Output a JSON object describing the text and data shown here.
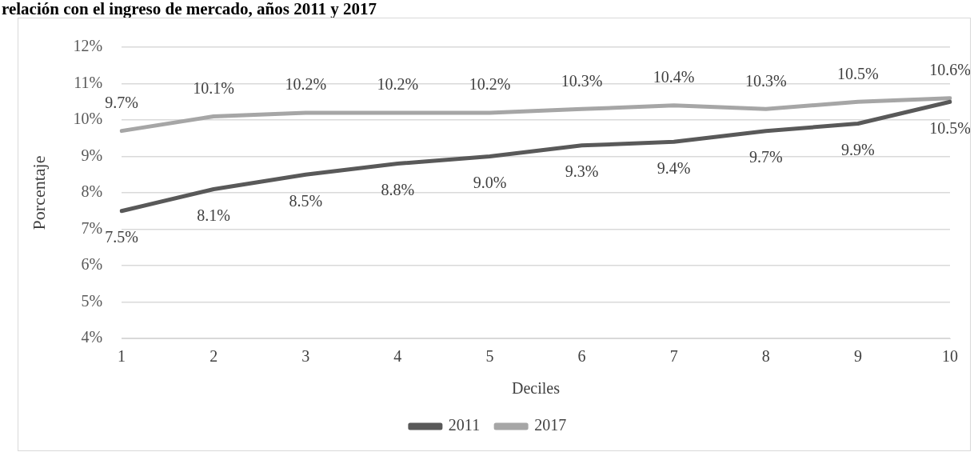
{
  "chart_data": {
    "type": "line",
    "title": "relación con el ingreso de mercado, años 2011 y 2017",
    "xlabel": "Deciles",
    "ylabel": "Porcentaje",
    "categories": [
      "1",
      "2",
      "3",
      "4",
      "5",
      "6",
      "7",
      "8",
      "9",
      "10"
    ],
    "series": [
      {
        "name": "2011",
        "color": "#595959",
        "values": [
          7.5,
          8.1,
          8.5,
          8.8,
          9.0,
          9.3,
          9.4,
          9.7,
          9.9,
          10.5
        ],
        "value_labels": [
          "7.5%",
          "8.1%",
          "8.5%",
          "8.8%",
          "9.0%",
          "9.3%",
          "9.4%",
          "9.7%",
          "9.9%",
          "10.5%"
        ]
      },
      {
        "name": "2017",
        "color": "#a6a6a6",
        "values": [
          9.7,
          10.1,
          10.2,
          10.2,
          10.2,
          10.3,
          10.4,
          10.3,
          10.5,
          10.6
        ],
        "value_labels": [
          "9.7%",
          "10.1%",
          "10.2%",
          "10.2%",
          "10.2%",
          "10.3%",
          "10.4%",
          "10.3%",
          "10.5%",
          "10.6%"
        ]
      }
    ],
    "ylim": [
      4,
      12
    ],
    "yticks": [
      {
        "value": 4,
        "label": "4%"
      },
      {
        "value": 5,
        "label": "5%"
      },
      {
        "value": 6,
        "label": "6%"
      },
      {
        "value": 7,
        "label": "7%"
      },
      {
        "value": 8,
        "label": "8%"
      },
      {
        "value": 9,
        "label": "9%"
      },
      {
        "value": 10,
        "label": "10%"
      },
      {
        "value": 11,
        "label": "11%"
      },
      {
        "value": 12,
        "label": "12%"
      }
    ],
    "grid": "y",
    "legend": "bottom",
    "marker": "none",
    "line_style": "solid"
  }
}
